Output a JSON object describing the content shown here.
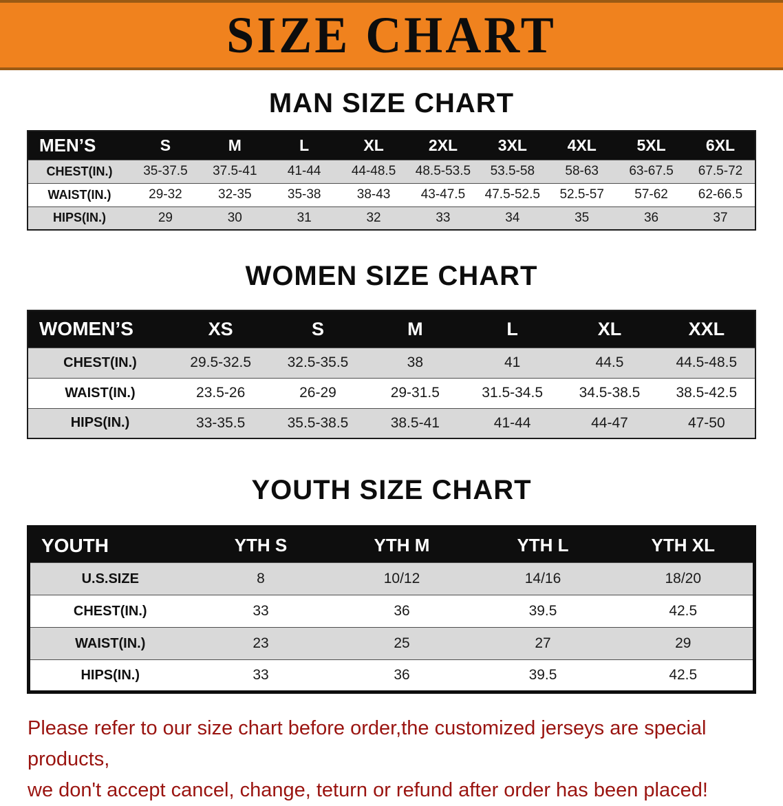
{
  "banner": {
    "title": "SIZE CHART"
  },
  "sections": [
    {
      "id": "men",
      "heading": "MAN SIZE CHART",
      "header_label": "MEN’S",
      "columns": [
        "S",
        "M",
        "L",
        "XL",
        "2XL",
        "3XL",
        "4XL",
        "5XL",
        "6XL"
      ],
      "rows": [
        {
          "label": "CHEST(IN.)",
          "values": [
            "35-37.5",
            "37.5-41",
            "41-44",
            "44-48.5",
            "48.5-53.5",
            "53.5-58",
            "58-63",
            "63-67.5",
            "67.5-72"
          ]
        },
        {
          "label": "WAIST(IN.)",
          "values": [
            "29-32",
            "32-35",
            "35-38",
            "38-43",
            "43-47.5",
            "47.5-52.5",
            "52.5-57",
            "57-62",
            "62-66.5"
          ]
        },
        {
          "label": "HIPS(IN.)",
          "values": [
            "29",
            "30",
            "31",
            "32",
            "33",
            "34",
            "35",
            "36",
            "37"
          ]
        }
      ]
    },
    {
      "id": "women",
      "heading": "WOMEN SIZE CHART",
      "header_label": "WOMEN’S",
      "columns": [
        "XS",
        "S",
        "M",
        "L",
        "XL",
        "XXL"
      ],
      "rows": [
        {
          "label": "CHEST(IN.)",
          "values": [
            "29.5-32.5",
            "32.5-35.5",
            "38",
            "41",
            "44.5",
            "44.5-48.5"
          ]
        },
        {
          "label": "WAIST(IN.)",
          "values": [
            "23.5-26",
            "26-29",
            "29-31.5",
            "31.5-34.5",
            "34.5-38.5",
            "38.5-42.5"
          ]
        },
        {
          "label": "HIPS(IN.)",
          "values": [
            "33-35.5",
            "35.5-38.5",
            "38.5-41",
            "41-44",
            "44-47",
            "47-50"
          ]
        }
      ]
    },
    {
      "id": "youth",
      "heading": "YOUTH SIZE CHART",
      "header_label": "YOUTH",
      "columns": [
        "YTH S",
        "YTH M",
        "YTH L",
        "YTH XL"
      ],
      "rows": [
        {
          "label": "U.S.SIZE",
          "values": [
            "8",
            "10/12",
            "14/16",
            "18/20"
          ]
        },
        {
          "label": "CHEST(IN.)",
          "values": [
            "33",
            "36",
            "39.5",
            "42.5"
          ]
        },
        {
          "label": "WAIST(IN.)",
          "values": [
            "23",
            "25",
            "27",
            "29"
          ]
        },
        {
          "label": "HIPS(IN.)",
          "values": [
            "33",
            "36",
            "39.5",
            "42.5"
          ]
        }
      ]
    }
  ],
  "disclaimer": {
    "line1": "Please refer to our size chart before order,the customized jerseys are special products,",
    "line2": "we don't accept cancel, change, teturn or refund after order has been placed!"
  },
  "colors": {
    "banner_orange": "#f0821e",
    "header_black": "#0e0e0e",
    "row_gray": "#d9d9d9",
    "disclaimer_red": "#9a1410"
  }
}
